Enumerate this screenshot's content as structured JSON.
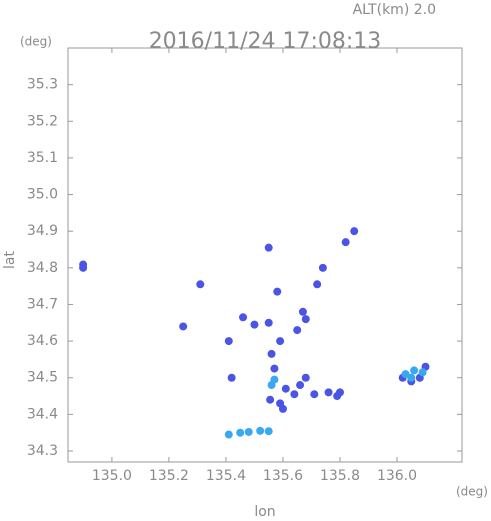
{
  "chart_data": {
    "type": "scatter",
    "title": "2016/11/24 17:08:13",
    "subtitle": "ALT(km) 2.0",
    "ylabel": "lat",
    "yunit": "(deg)",
    "xlabel": "lon",
    "xunit": "(deg)",
    "xlim": [
      134.846,
      136.228
    ],
    "ylim": [
      34.27,
      35.4
    ],
    "xticks": [
      {
        "value": 135,
        "label": "135.0"
      },
      135.2,
      135.4,
      135.6,
      135.8,
      {
        "value": 136,
        "label": "136.0"
      }
    ],
    "yticks": [
      34.3,
      34.4,
      34.5,
      34.6,
      34.7,
      34.8,
      34.9,
      {
        "value": 35,
        "label": "35.0"
      },
      35.1,
      35.2,
      35.3
    ],
    "series": [
      {
        "color": "#4a55e6",
        "x": [
          134.899,
          134.899,
          135.25,
          135.31,
          135.55,
          135.58,
          135.72,
          135.74,
          135.82,
          135.85,
          135.46,
          135.41,
          135.42,
          135.55,
          135.5,
          135.67,
          135.68,
          135.65,
          135.59,
          135.56,
          135.57,
          135.61,
          135.59,
          135.64,
          135.68,
          135.66,
          135.71,
          135.76,
          135.8,
          135.79,
          135.555,
          135.6,
          136.02,
          136.05,
          136.1,
          136.08
        ],
        "y": [
          34.809,
          34.8,
          34.64,
          34.755,
          34.855,
          34.735,
          34.755,
          34.8,
          34.87,
          34.9,
          34.665,
          34.6,
          34.5,
          34.65,
          34.645,
          34.68,
          34.66,
          34.63,
          34.6,
          34.565,
          34.525,
          34.47,
          34.43,
          34.455,
          34.5,
          34.48,
          34.455,
          34.46,
          34.46,
          34.45,
          34.44,
          34.415,
          34.5,
          34.49,
          34.53,
          34.5
        ]
      },
      {
        "color": "#3aa8f0",
        "x": [
          136.03,
          136.06,
          136.09,
          136.05,
          135.57,
          135.56,
          135.41,
          135.45,
          135.48,
          135.52,
          135.55
        ],
        "y": [
          34.51,
          34.52,
          34.515,
          34.5,
          34.495,
          34.48,
          34.345,
          34.35,
          34.352,
          34.355,
          34.354
        ]
      }
    ]
  }
}
